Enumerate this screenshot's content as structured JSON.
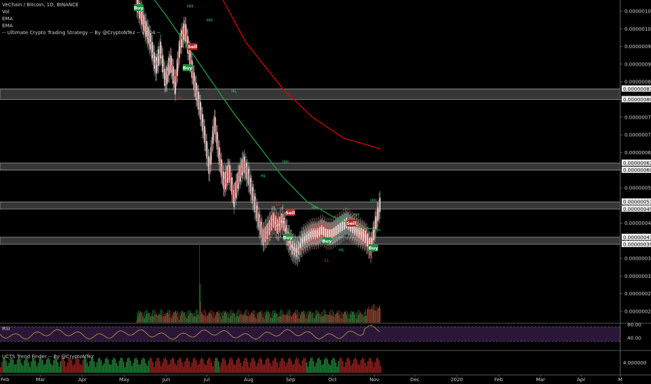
{
  "chart_data": {
    "type": "candlestick",
    "title": "VeChain / Bitcoin, 1D, BINANCE",
    "indicators": [
      "Vol",
      "EMA",
      "EMA",
      "-- Ultimate Crypto Trading Strategy -- By @CryptoNTez -- v2.04 --"
    ],
    "x_ticks": [
      "Feb",
      "Mar",
      "Apr",
      "May",
      "Jun",
      "Jul",
      "Aug",
      "Sep",
      "Oct",
      "Nov",
      "Dec",
      "2020",
      "Feb",
      "Mar",
      "Apr",
      "M"
    ],
    "y_ticks": [
      "0.00000105",
      "0.00000100",
      "0.00000095",
      "0.00000090",
      "0.00000085",
      "0.00000080",
      "0.00000075",
      "0.00000070",
      "0.00000065",
      "0.00000060",
      "0.00000055",
      "0.00000050",
      "0.00000045",
      "0.00000040",
      "0.00000035",
      "0.00000030",
      "0.00000025",
      "0.00000020"
    ],
    "ylim": [
      1.8e-07,
      1.08e-06
    ],
    "zones": [
      {
        "low": 8e-07,
        "high": 8.3e-07,
        "labels": [
          "0.00000083",
          "0.00000080"
        ]
      },
      {
        "low": 6e-07,
        "high": 6.2e-07,
        "labels": [
          "0.00000062",
          "0.00000060"
        ]
      },
      {
        "low": 4.9e-07,
        "high": 5.1e-07,
        "labels": [
          "0.00000051",
          "0.00000049"
        ]
      },
      {
        "low": 3.9e-07,
        "high": 4.1e-07,
        "labels": [
          "0.00000041",
          "0.00000039"
        ]
      }
    ],
    "ema_slow": {
      "color": "#e00000",
      "points": [
        [
          0.34,
          1.1e-06
        ],
        [
          0.45,
          9.6e-07
        ],
        [
          0.6,
          8.3e-07
        ],
        [
          0.72,
          7.5e-07
        ],
        [
          0.85,
          6.9e-07
        ],
        [
          1.0,
          6.6e-07
        ]
      ]
    },
    "ema_fast": {
      "color": "#1aa33c",
      "points": [
        [
          0.0,
          1.15e-06
        ],
        [
          0.12,
          1.04e-06
        ],
        [
          0.2,
          9.6e-07
        ],
        [
          0.3,
          8.6e-07
        ],
        [
          0.4,
          7.6e-07
        ],
        [
          0.5,
          6.7e-07
        ],
        [
          0.6,
          5.8e-07
        ],
        [
          0.7,
          5.1e-07
        ],
        [
          0.8,
          4.7e-07
        ],
        [
          0.9,
          4.4e-07
        ],
        [
          1.0,
          4.3e-07
        ]
      ]
    },
    "series": [
      {
        "name": "VeChain / Bitcoin",
        "points": [
          [
            0.0,
            1.08e-06
          ],
          [
            0.02,
            1.04e-06
          ],
          [
            0.04,
            1e-06
          ],
          [
            0.06,
            9.6e-07
          ],
          [
            0.08,
            8.9e-07
          ],
          [
            0.1,
            9.4e-07
          ],
          [
            0.12,
            8.5e-07
          ],
          [
            0.14,
            9.1e-07
          ],
          [
            0.16,
            8.4e-07
          ],
          [
            0.18,
            9.6e-07
          ],
          [
            0.2,
            1e-06
          ],
          [
            0.22,
            9.2e-07
          ],
          [
            0.24,
            8.4e-07
          ],
          [
            0.26,
            7.8e-07
          ],
          [
            0.28,
            7e-07
          ],
          [
            0.3,
            6e-07
          ],
          [
            0.32,
            7.4e-07
          ],
          [
            0.34,
            6.4e-07
          ],
          [
            0.36,
            5.6e-07
          ],
          [
            0.38,
            6e-07
          ],
          [
            0.4,
            5.2e-07
          ],
          [
            0.42,
            5.8e-07
          ],
          [
            0.44,
            6.2e-07
          ],
          [
            0.46,
            5.8e-07
          ],
          [
            0.48,
            5.2e-07
          ],
          [
            0.5,
            4.6e-07
          ],
          [
            0.52,
            4.1e-07
          ],
          [
            0.54,
            4.3e-07
          ],
          [
            0.56,
            4.6e-07
          ],
          [
            0.58,
            4.4e-07
          ],
          [
            0.6,
            4.6e-07
          ],
          [
            0.62,
            4.1e-07
          ],
          [
            0.64,
            3.8e-07
          ],
          [
            0.66,
            3.7e-07
          ],
          [
            0.68,
            4e-07
          ],
          [
            0.7,
            4.1e-07
          ],
          [
            0.72,
            4.2e-07
          ],
          [
            0.74,
            4.2e-07
          ],
          [
            0.76,
            4.3e-07
          ],
          [
            0.78,
            4.2e-07
          ],
          [
            0.8,
            4.2e-07
          ],
          [
            0.82,
            4.3e-07
          ],
          [
            0.84,
            4.4e-07
          ],
          [
            0.86,
            4.5e-07
          ],
          [
            0.88,
            4.4e-07
          ],
          [
            0.9,
            4.3e-07
          ],
          [
            0.92,
            4.2e-07
          ],
          [
            0.94,
            4.1e-07
          ],
          [
            0.96,
            3.8e-07
          ],
          [
            0.98,
            4.5e-07
          ],
          [
            1.0,
            5.1e-07
          ]
        ]
      }
    ],
    "signals": [
      {
        "label": "Buy",
        "type": "buy",
        "t": 0.01,
        "price": 1.06e-06
      },
      {
        "label": "Sell",
        "type": "sell",
        "t": 0.23,
        "price": 9.5e-07
      },
      {
        "label": "Buy",
        "type": "buy",
        "t": 0.21,
        "price": 8.9e-07
      },
      {
        "label": "Sell",
        "type": "sell",
        "t": 0.63,
        "price": 4.8e-07
      },
      {
        "label": "Buy",
        "type": "buy",
        "t": 0.62,
        "price": 4.1e-07
      },
      {
        "label": "Buy",
        "type": "buy",
        "t": 0.78,
        "price": 4e-07
      },
      {
        "label": "Sell",
        "type": "sell",
        "t": 0.88,
        "price": 4.5e-07
      },
      {
        "label": "Buy",
        "type": "buy",
        "t": 0.97,
        "price": 3.8e-07
      }
    ],
    "pivot_labels": [
      {
        "text": "HH",
        "t": 0.22,
        "price": 1.06e-06
      },
      {
        "text": "LL",
        "t": 0.18,
        "price": 8e-07
      },
      {
        "text": "HH",
        "t": 0.3,
        "price": 1.02e-06
      },
      {
        "text": "HL",
        "t": 0.4,
        "price": 8.2e-07
      },
      {
        "text": "HH",
        "t": 0.61,
        "price": 6.2e-07
      },
      {
        "text": "HL",
        "t": 0.52,
        "price": 5.8e-07
      },
      {
        "text": "LL",
        "t": 0.58,
        "price": 5e-07
      },
      {
        "text": "HH",
        "t": 0.73,
        "price": 4.9e-07
      },
      {
        "text": "LL",
        "t": 0.67,
        "price": 3.7e-07
      },
      {
        "text": "HH",
        "t": 0.9,
        "price": 4.7e-07
      },
      {
        "text": "HL",
        "t": 0.84,
        "price": 3.7e-07
      },
      {
        "text": "LL",
        "t": 0.78,
        "price": 3.4e-07
      },
      {
        "text": "HH",
        "t": 0.97,
        "price": 5.1e-07
      },
      {
        "text": "LL",
        "t": 0.96,
        "price": 3.5e-07
      }
    ],
    "rsi": {
      "title": "RSI",
      "ticks": [
        "80.00",
        "40.00"
      ]
    },
    "trend_finder": {
      "title": "UCTS Trend Finder -- By @CryptoNTez",
      "ticks": [
        "4.000000"
      ]
    }
  }
}
